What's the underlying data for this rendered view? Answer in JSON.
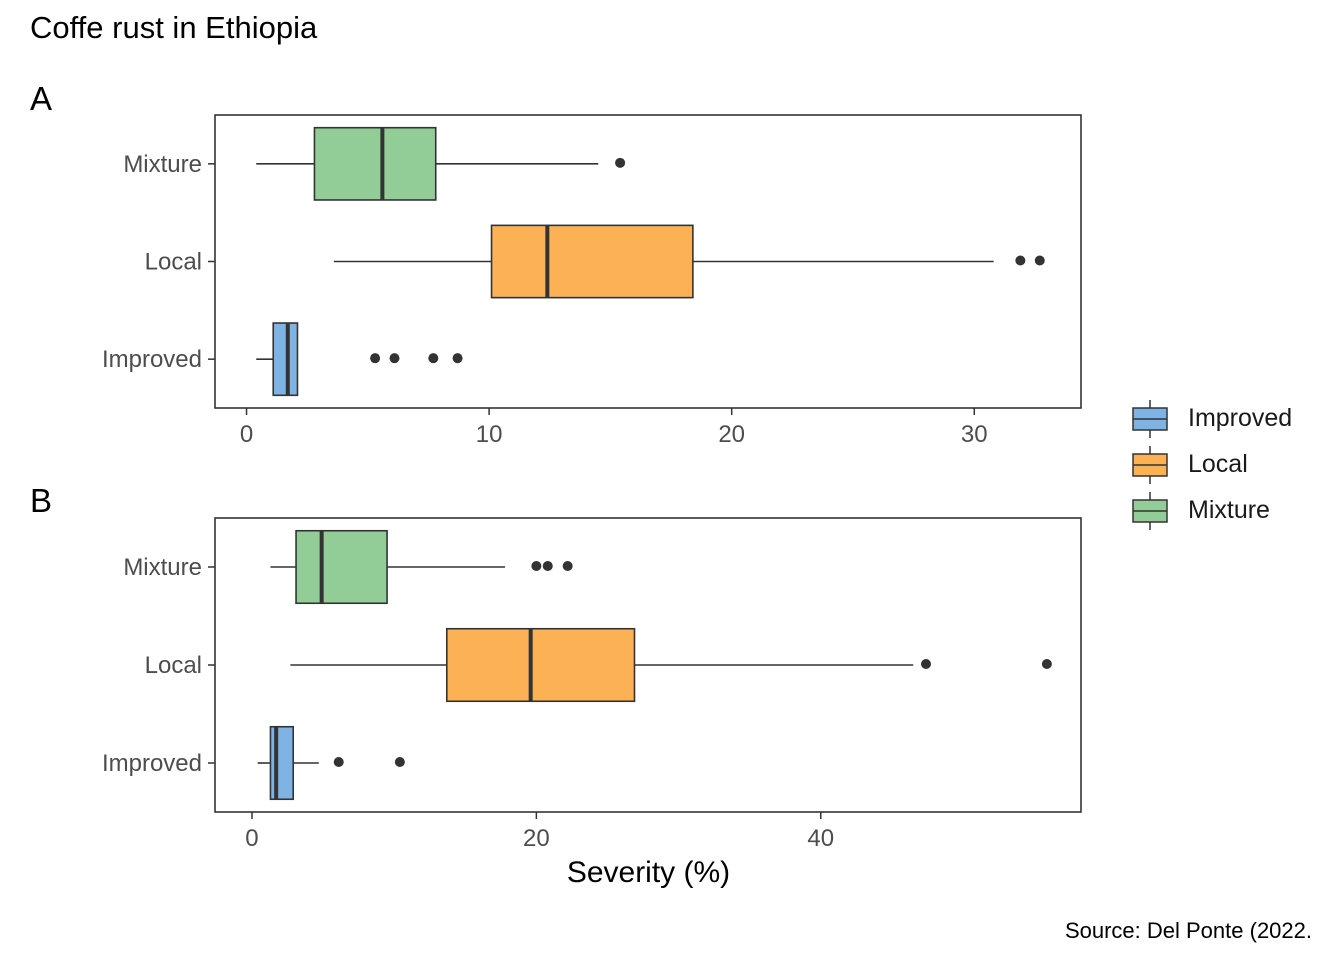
{
  "title": "Coffe rust in Ethiopia",
  "caption": "Source: Del Ponte (2022.",
  "xlabel": "Severity (%)",
  "legend": {
    "position": "right",
    "items": [
      {
        "label": "Improved",
        "color": "#7eb3e3"
      },
      {
        "label": "Local",
        "color": "#fbb154"
      },
      {
        "label": "Mixture",
        "color": "#92cc97"
      }
    ]
  },
  "chart_data": [
    {
      "type": "boxplot",
      "panel_label": "A",
      "orientation": "horizontal",
      "xlim": [
        -1.3,
        34.4
      ],
      "x_ticks": [
        0,
        10,
        20,
        30
      ],
      "categories": [
        "Improved",
        "Local",
        "Mixture"
      ],
      "grid": false,
      "boxes": [
        {
          "category": "Improved",
          "min": 0.4,
          "q1": 1.1,
          "median": 1.7,
          "q3": 2.1,
          "max": 2.1,
          "outliers": [
            5.3,
            6.1,
            7.7,
            8.7
          ],
          "color": "#7eb3e3"
        },
        {
          "category": "Local",
          "min": 3.6,
          "q1": 10.1,
          "median": 12.4,
          "q3": 18.4,
          "max": 30.8,
          "outliers": [
            31.9,
            32.7
          ],
          "color": "#fbb154"
        },
        {
          "category": "Mixture",
          "min": 0.4,
          "q1": 2.8,
          "median": 5.6,
          "q3": 7.8,
          "max": 14.5,
          "outliers": [
            15.4
          ],
          "color": "#92cc97"
        }
      ]
    },
    {
      "type": "boxplot",
      "panel_label": "B",
      "orientation": "horizontal",
      "xlim": [
        -2.6,
        58.3
      ],
      "x_ticks": [
        0,
        20,
        40
      ],
      "categories": [
        "Improved",
        "Local",
        "Mixture"
      ],
      "grid": false,
      "boxes": [
        {
          "category": "Improved",
          "min": 0.4,
          "q1": 1.3,
          "median": 1.7,
          "q3": 2.9,
          "max": 4.7,
          "outliers": [
            6.1,
            10.4
          ],
          "color": "#7eb3e3"
        },
        {
          "category": "Local",
          "min": 2.7,
          "q1": 13.7,
          "median": 19.6,
          "q3": 26.9,
          "max": 46.5,
          "outliers": [
            47.4,
            55.9
          ],
          "color": "#fbb154"
        },
        {
          "category": "Mixture",
          "min": 1.3,
          "q1": 3.1,
          "median": 4.9,
          "q3": 9.5,
          "max": 17.8,
          "outliers": [
            20.0,
            20.8,
            22.2
          ],
          "color": "#92cc97"
        }
      ]
    }
  ]
}
